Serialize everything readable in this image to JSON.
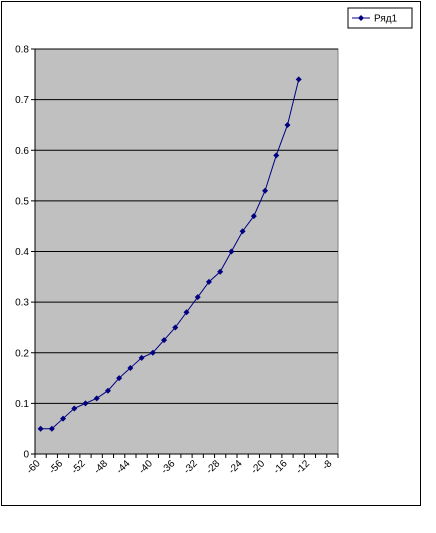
{
  "chart_data": {
    "type": "line",
    "categories": [
      -60,
      null,
      -56,
      null,
      -52,
      null,
      -48,
      null,
      -44,
      null,
      -40,
      null,
      -36,
      null,
      -32,
      null,
      -28,
      null,
      -24,
      null,
      -20,
      null,
      -16,
      null,
      -12,
      null,
      -8
    ],
    "series": [
      {
        "name": "Ряд1",
        "color": "#000080",
        "values": [
          0.05,
          0.05,
          0.07,
          0.09,
          0.1,
          0.11,
          0.125,
          0.15,
          0.17,
          0.19,
          0.2,
          0.225,
          0.25,
          0.28,
          0.31,
          0.34,
          0.36,
          0.4,
          0.44,
          0.47,
          0.52,
          0.59,
          0.65,
          0.74,
          null,
          null,
          null
        ]
      }
    ],
    "ylim": [
      0,
      0.8
    ],
    "yticks": [
      0,
      0.1,
      0.2,
      0.3,
      0.4,
      0.5,
      0.6,
      0.7,
      0.8
    ],
    "grid": true,
    "legend": "top-right",
    "plot_background": "#c0c0c0"
  }
}
